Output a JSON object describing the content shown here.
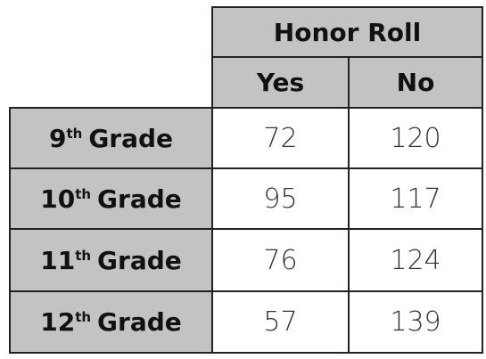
{
  "table": {
    "header": {
      "group": "Honor Roll",
      "columns": [
        "Yes",
        "No"
      ]
    },
    "rows": [
      {
        "label": {
          "number": "9",
          "suffix": "th",
          "text": "Grade"
        },
        "yes": "72",
        "no": "120"
      },
      {
        "label": {
          "number": "10",
          "suffix": "th",
          "text": "Grade"
        },
        "yes": "95",
        "no": "117"
      },
      {
        "label": {
          "number": "11",
          "suffix": "th",
          "text": "Grade"
        },
        "yes": "76",
        "no": "124"
      },
      {
        "label": {
          "number": "12",
          "suffix": "th",
          "text": "Grade"
        },
        "yes": "57",
        "no": "139"
      }
    ]
  }
}
